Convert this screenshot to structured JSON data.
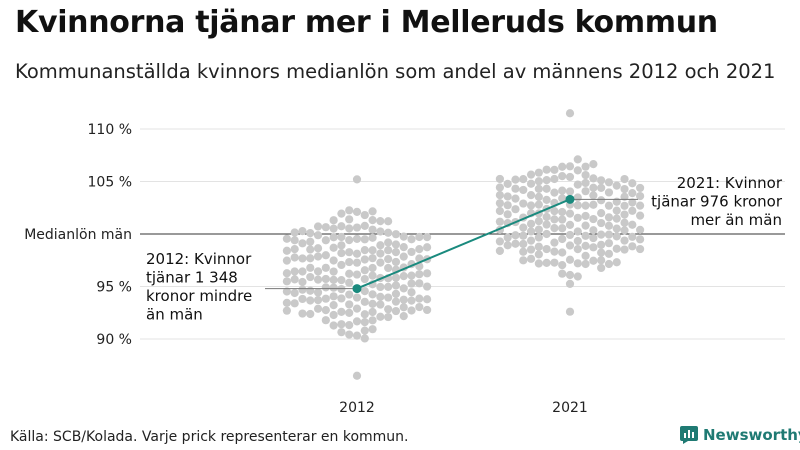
{
  "title": "Kvinnorna tjänar mer i Melleruds kommun",
  "subtitle": "Kommunanställda kvinnors medianlön som andel av männens 2012 och 2021",
  "source": "Källa: SCB/Kolada. Varje prick representerar en kommun.",
  "brand": {
    "name": "Newsworthy",
    "color": "#1f7a73"
  },
  "chart_data": {
    "type": "scatter",
    "categories": [
      "2012",
      "2021"
    ],
    "ylim": [
      86,
      112
    ],
    "yticks": [
      {
        "value": 90,
        "label": "90 %"
      },
      {
        "value": 95,
        "label": "95 %"
      },
      {
        "value": 100,
        "label": "Medianlön män"
      },
      {
        "value": 105,
        "label": "105 %"
      },
      {
        "value": 110,
        "label": "110 %"
      }
    ],
    "distribution": [
      {
        "category": "2012",
        "median": 96.5,
        "min": 86.5,
        "max": 105.2
      },
      {
        "category": "2021",
        "median": 101.5,
        "min": 92.6,
        "max": 111.5
      }
    ],
    "highlight": {
      "name": "Mellerud",
      "values": [
        {
          "x": "2012",
          "y": 94.8
        },
        {
          "x": "2021",
          "y": 103.3
        }
      ],
      "color": "#1a8a7e"
    },
    "annotations": [
      {
        "x": "2012",
        "lines": [
          "2012: Kvinnor",
          "tjänar 1 348",
          "kronor mindre",
          "än män"
        ]
      },
      {
        "x": "2021",
        "lines": [
          "2021: Kvinnor",
          "tjänar 976 kronor",
          "mer än män"
        ]
      }
    ],
    "colors": {
      "dots": "#c9c9c9",
      "grid": "#e3e3e3",
      "reference": "#333333"
    },
    "grid": true,
    "legend": "none"
  }
}
